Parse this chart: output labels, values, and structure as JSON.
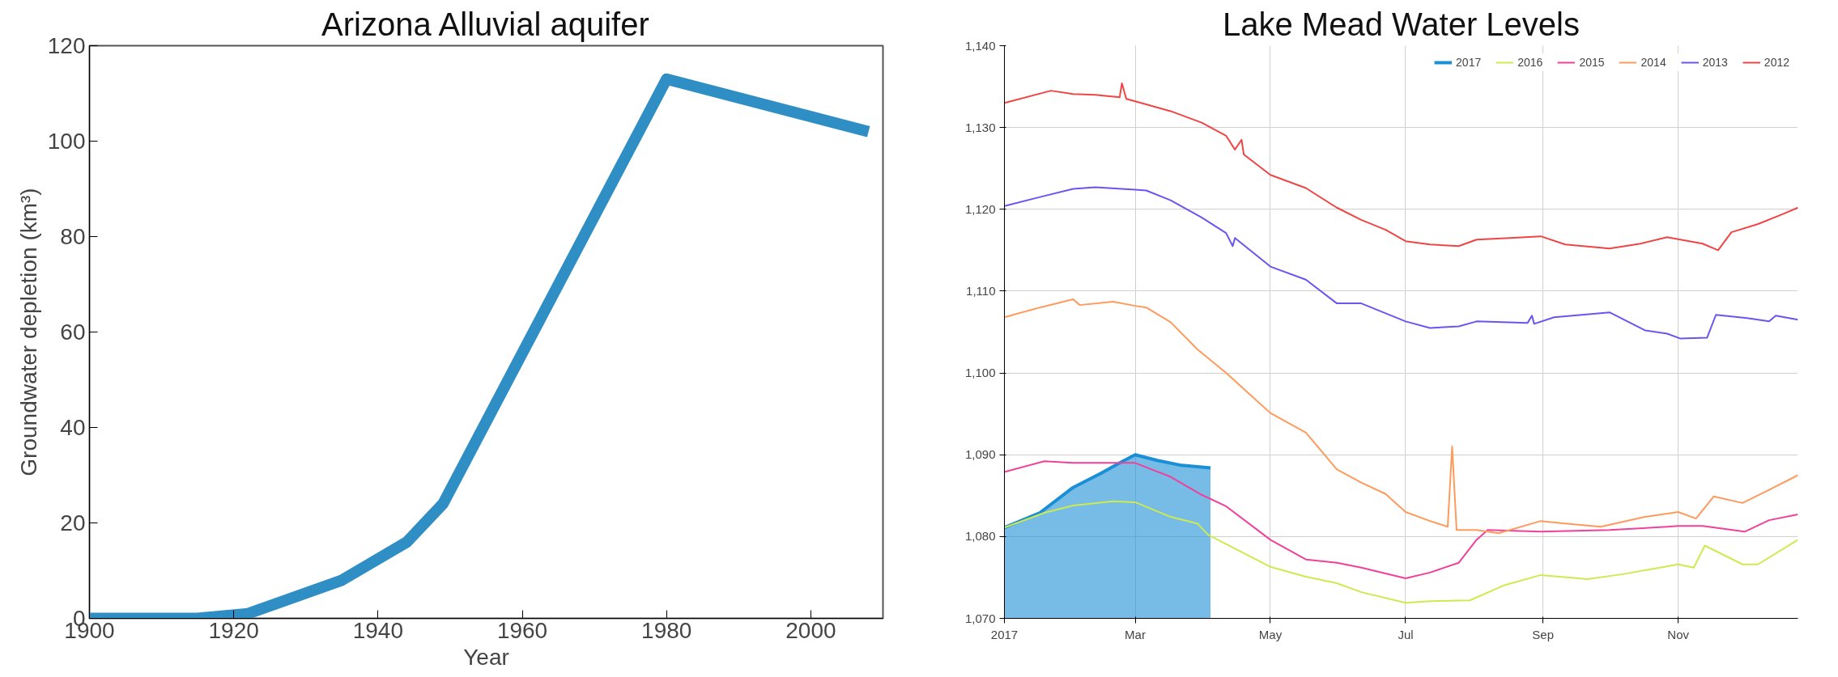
{
  "chart_data": [
    {
      "type": "line",
      "title": "Arizona Alluvial aquifer",
      "xlabel": "Year",
      "ylabel": "Groundwater depletion (km³)",
      "xlim": [
        1900,
        2010
      ],
      "ylim": [
        0,
        120
      ],
      "xticks": [
        1900,
        1920,
        1940,
        1960,
        1980,
        2000
      ],
      "yticks": [
        0,
        20,
        40,
        60,
        80,
        100,
        120
      ],
      "grid": false,
      "legend": false,
      "series": [
        {
          "color": "#2f8fc4",
          "x": [
            1900,
            1915,
            1922,
            1935,
            1944,
            1949,
            1980,
            2008
          ],
          "values": [
            0,
            0,
            1,
            8,
            16,
            24,
            113,
            102
          ]
        }
      ]
    },
    {
      "type": "line",
      "title": "Lake Mead Water Levels",
      "xlim": [
        "2017-01-01",
        "2017-12-25"
      ],
      "ylim": [
        1070,
        1140
      ],
      "xticks": [
        {
          "value": "2017-01-01",
          "label": "2017"
        },
        {
          "value": "2017-03-01",
          "label": "Mar"
        },
        {
          "value": "2017-05-01",
          "label": "May"
        },
        {
          "value": "2017-07-01",
          "label": "Jul"
        },
        {
          "value": "2017-09-01",
          "label": "Sep"
        },
        {
          "value": "2017-11-01",
          "label": "Nov"
        }
      ],
      "yticks": [
        {
          "value": 1070,
          "label": "1,070"
        },
        {
          "value": 1080,
          "label": "1,080"
        },
        {
          "value": 1090,
          "label": "1,090"
        },
        {
          "value": 1100,
          "label": "1,100"
        },
        {
          "value": 1110,
          "label": "1,110"
        },
        {
          "value": 1120,
          "label": "1,120"
        },
        {
          "value": 1130,
          "label": "1,130"
        },
        {
          "value": 1140,
          "label": "1,140"
        }
      ],
      "grid": true,
      "legend": "top right",
      "series": [
        {
          "name": "2017",
          "type": "area",
          "color": "#1a8fd6",
          "x": [
            "2017-01-01",
            "2017-01-17",
            "2017-02-01",
            "2017-02-14",
            "2017-02-22",
            "2017-03-01",
            "2017-03-11",
            "2017-03-22",
            "2017-04-04"
          ],
          "values": [
            1081.1,
            1082.9,
            1086,
            1087.8,
            1089,
            1090,
            1089.3,
            1088.7,
            1088.4
          ]
        },
        {
          "name": "2016",
          "color": "#cdea50",
          "x": [
            "2017-01-01",
            "2017-01-19",
            "2017-02-01",
            "2017-02-19",
            "2017-03-01",
            "2017-03-17",
            "2017-03-29",
            "2017-04-03",
            "2017-05-01",
            "2017-05-17",
            "2017-05-31",
            "2017-06-11",
            "2017-07-01",
            "2017-07-12",
            "2017-07-30",
            "2017-08-14",
            "2017-08-31",
            "2017-09-21",
            "2017-10-07",
            "2017-11-01",
            "2017-11-08",
            "2017-11-13",
            "2017-11-30",
            "2017-12-07",
            "2017-12-25"
          ],
          "values": [
            1081.1,
            1082.9,
            1083.8,
            1084.3,
            1084.2,
            1082.4,
            1081.6,
            1080.2,
            1076.3,
            1075.1,
            1074.3,
            1073.2,
            1071.9,
            1072.1,
            1072.2,
            1074,
            1075.3,
            1074.8,
            1075.4,
            1076.6,
            1076.2,
            1078.9,
            1076.6,
            1076.6,
            1079.6
          ]
        },
        {
          "name": "2015",
          "color": "#f0409a",
          "x": [
            "2017-01-01",
            "2017-01-19",
            "2017-02-01",
            "2017-02-19",
            "2017-03-01",
            "2017-03-17",
            "2017-03-31",
            "2017-04-11",
            "2017-05-01",
            "2017-05-17",
            "2017-05-31",
            "2017-06-11",
            "2017-07-01",
            "2017-07-12",
            "2017-07-25",
            "2017-08-02",
            "2017-08-07",
            "2017-08-31",
            "2017-10-01",
            "2017-10-27",
            "2017-11-01",
            "2017-11-12",
            "2017-12-01",
            "2017-12-12",
            "2017-12-25"
          ],
          "values": [
            1087.9,
            1089.2,
            1089,
            1089,
            1089,
            1087.3,
            1085.1,
            1083.7,
            1079.6,
            1077.2,
            1076.8,
            1076.2,
            1074.9,
            1075.6,
            1076.8,
            1079.6,
            1080.8,
            1080.6,
            1080.8,
            1081.2,
            1081.3,
            1081.3,
            1080.6,
            1082,
            1082.7
          ]
        },
        {
          "name": "2014",
          "color": "#ff9a5c",
          "x": [
            "2017-01-01",
            "2017-01-17",
            "2017-02-01",
            "2017-02-04",
            "2017-02-19",
            "2017-03-01",
            "2017-03-06",
            "2017-03-17",
            "2017-03-29",
            "2017-04-11",
            "2017-05-01",
            "2017-05-17",
            "2017-05-31",
            "2017-06-11",
            "2017-06-22",
            "2017-07-01",
            "2017-07-12",
            "2017-07-20",
            "2017-07-22",
            "2017-07-24",
            "2017-08-02",
            "2017-08-12",
            "2017-08-31",
            "2017-09-11",
            "2017-09-27",
            "2017-10-17",
            "2017-11-01",
            "2017-11-09",
            "2017-11-17",
            "2017-11-30",
            "2017-12-12",
            "2017-12-25"
          ],
          "values": [
            1106.8,
            1108,
            1109,
            1108.3,
            1108.7,
            1108.2,
            1108,
            1106.2,
            1102.9,
            1100,
            1095.1,
            1092.7,
            1088.2,
            1086.6,
            1085.2,
            1083,
            1081.9,
            1081.2,
            1091,
            1080.8,
            1080.8,
            1080.4,
            1081.9,
            1081.6,
            1081.2,
            1082.4,
            1083,
            1082.2,
            1084.9,
            1084.1,
            1085.7,
            1087.5
          ]
        },
        {
          "name": "2013",
          "color": "#6a55f0",
          "x": [
            "2017-01-01",
            "2017-01-17",
            "2017-02-01",
            "2017-02-11",
            "2017-03-01",
            "2017-03-06",
            "2017-03-17",
            "2017-03-31",
            "2017-04-11",
            "2017-04-14",
            "2017-04-15",
            "2017-05-01",
            "2017-05-17",
            "2017-05-31",
            "2017-06-11",
            "2017-07-01",
            "2017-07-12",
            "2017-07-25",
            "2017-08-02",
            "2017-08-25",
            "2017-08-27",
            "2017-08-28",
            "2017-09-06",
            "2017-10-01",
            "2017-10-17",
            "2017-10-27",
            "2017-11-02",
            "2017-11-14",
            "2017-11-18",
            "2017-12-02",
            "2017-12-12",
            "2017-12-15",
            "2017-12-25"
          ],
          "values": [
            1120.4,
            1121.5,
            1122.5,
            1122.7,
            1122.4,
            1122.3,
            1121.1,
            1119,
            1117.1,
            1115.5,
            1116.5,
            1113,
            1111.4,
            1108.5,
            1108.5,
            1106.3,
            1105.5,
            1105.7,
            1106.3,
            1106.1,
            1107,
            1106,
            1106.8,
            1107.4,
            1105.2,
            1104.8,
            1104.2,
            1104.3,
            1107.1,
            1106.7,
            1106.3,
            1107,
            1106.5
          ]
        },
        {
          "name": "2012",
          "color": "#f04545",
          "x": [
            "2017-01-01",
            "2017-01-22",
            "2017-02-01",
            "2017-02-11",
            "2017-02-22",
            "2017-02-23",
            "2017-02-25",
            "2017-03-01",
            "2017-03-17",
            "2017-03-31",
            "2017-04-11",
            "2017-04-15",
            "2017-04-18",
            "2017-04-19",
            "2017-05-01",
            "2017-05-17",
            "2017-05-31",
            "2017-06-11",
            "2017-06-22",
            "2017-07-01",
            "2017-07-12",
            "2017-07-25",
            "2017-08-02",
            "2017-08-17",
            "2017-08-31",
            "2017-09-11",
            "2017-10-01",
            "2017-10-15",
            "2017-10-27",
            "2017-11-12",
            "2017-11-19",
            "2017-11-25",
            "2017-12-07",
            "2017-12-18",
            "2017-12-25"
          ],
          "values": [
            1133,
            1134.5,
            1134.1,
            1134,
            1133.7,
            1135.4,
            1133.5,
            1133.2,
            1132,
            1130.6,
            1129,
            1127.3,
            1128.5,
            1126.7,
            1124.2,
            1122.6,
            1120.2,
            1118.7,
            1117.5,
            1116.1,
            1115.7,
            1115.5,
            1116.3,
            1116.5,
            1116.7,
            1115.7,
            1115.2,
            1115.8,
            1116.6,
            1115.8,
            1115,
            1117.2,
            1118.2,
            1119.4,
            1120.2
          ]
        }
      ]
    }
  ]
}
